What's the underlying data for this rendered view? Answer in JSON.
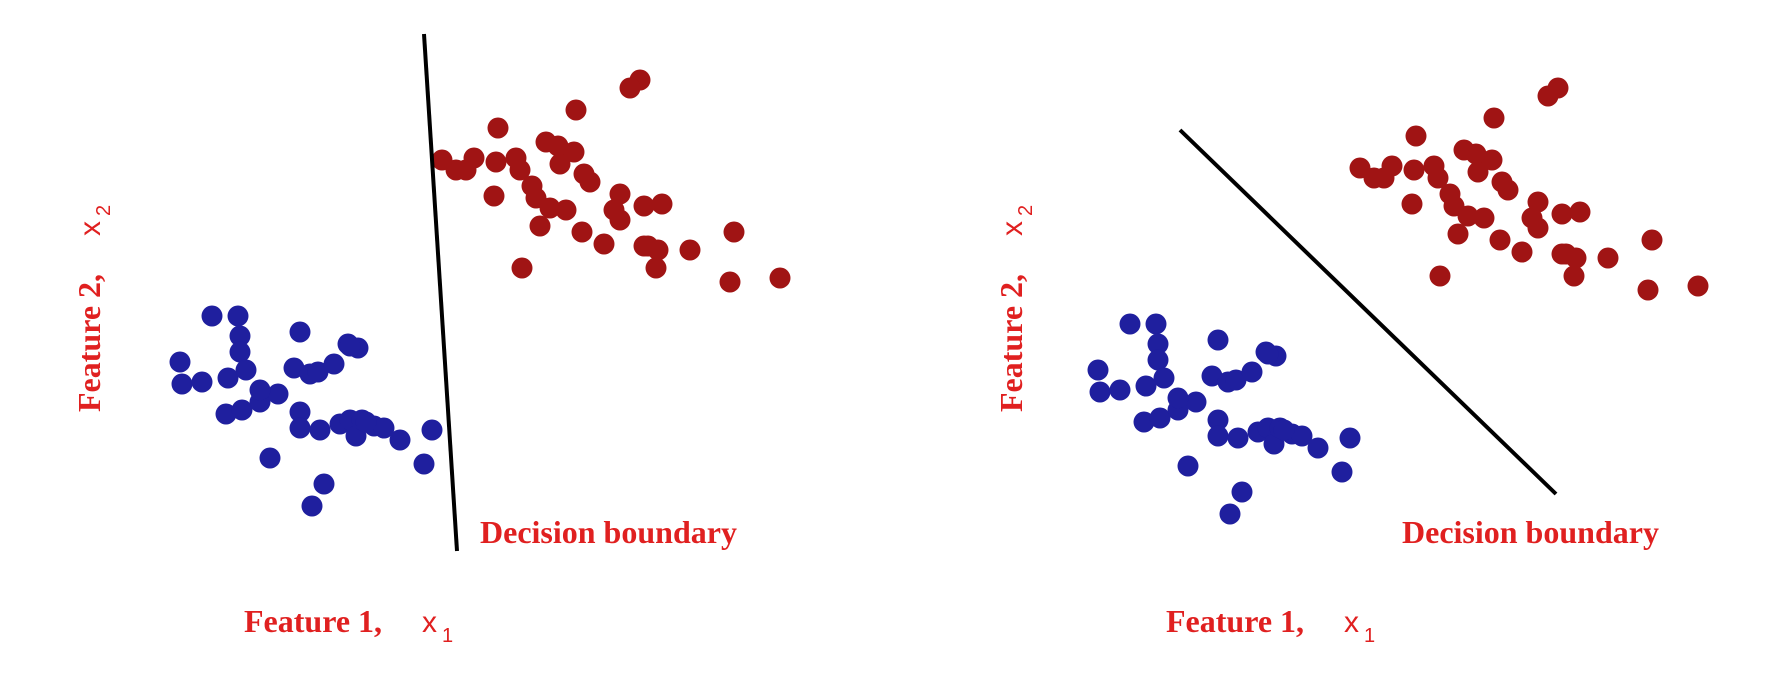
{
  "colors": {
    "class_a": "#1f1f9e",
    "class_b": "#a01414",
    "boundary": "#000000",
    "label": "#e02020"
  },
  "panels": [
    {
      "boundary_label": "Decision boundary",
      "xlabel": {
        "text": "Feature 1,",
        "var": "x",
        "sub": "1"
      },
      "ylabel": {
        "text": "Feature 2,",
        "var": "x",
        "sub": "2"
      }
    },
    {
      "boundary_label": "Decision boundary",
      "xlabel": {
        "text": "Feature 1,",
        "var": "x",
        "sub": "1"
      },
      "ylabel": {
        "text": "Feature 2,",
        "var": "x",
        "sub": "2"
      }
    }
  ]
}
